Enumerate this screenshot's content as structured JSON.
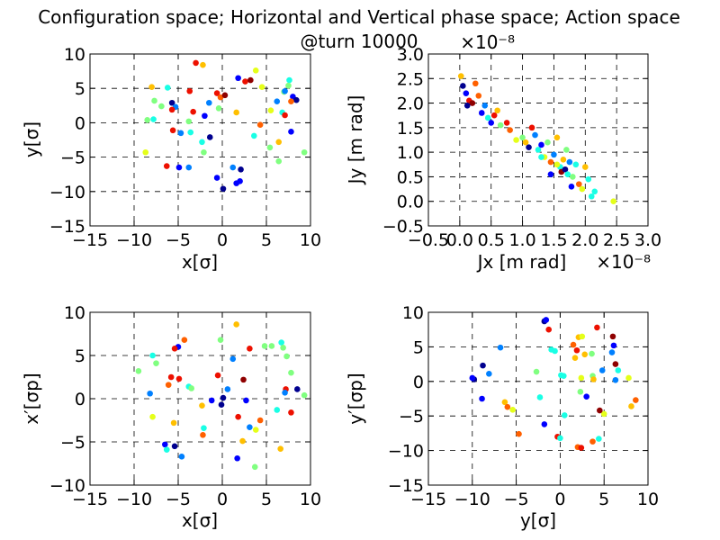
{
  "figure": {
    "title_line1": "Configuration space; Horizontal and Vertical phase space; Action space",
    "title_line2": "@turn 10000"
  },
  "colors": [
    "#00008f",
    "#0000ff",
    "#0080ff",
    "#19ffe5",
    "#80ff80",
    "#e5ff19",
    "#ffbf00",
    "#ff6000",
    "#ed1000",
    "#8f0000"
  ],
  "chart_data": [
    {
      "id": "config",
      "type": "scatter",
      "xlabel": "x[σ]",
      "ylabel": "y[σ]",
      "xlim": [
        -15,
        10
      ],
      "ylim": [
        -15,
        10
      ],
      "xticks": [
        "−15",
        "−10",
        "−5",
        "0",
        "5",
        "10"
      ],
      "yticks": [
        "−15",
        "−10",
        "−5",
        "0",
        "5",
        "10"
      ],
      "points": [
        [
          -3,
          8.7,
          8
        ],
        [
          -2.2,
          8.4,
          6
        ],
        [
          3.8,
          7.6,
          5
        ],
        [
          1.8,
          6.5,
          1
        ],
        [
          2.6,
          6,
          8
        ],
        [
          3.2,
          6.2,
          9
        ],
        [
          7.6,
          6.2,
          3
        ],
        [
          7.5,
          5.4,
          4
        ],
        [
          -8,
          5.2,
          6
        ],
        [
          -6.2,
          5.1,
          3
        ],
        [
          4.5,
          5.2,
          5
        ],
        [
          7,
          4.5,
          4
        ],
        [
          -3.7,
          4.6,
          8
        ],
        [
          -0.6,
          4.3,
          8
        ],
        [
          -0.2,
          3.7,
          7
        ],
        [
          0.3,
          4,
          9
        ],
        [
          7.1,
          4.6,
          2
        ],
        [
          8,
          3.8,
          1
        ],
        [
          8.4,
          3.3,
          0
        ],
        [
          7.8,
          3.1,
          7
        ],
        [
          -5.7,
          2.9,
          0
        ],
        [
          6.2,
          3.1,
          2
        ],
        [
          -5.3,
          2.3,
          2
        ],
        [
          -6.9,
          2.4,
          4
        ],
        [
          -5.7,
          1.9,
          8
        ],
        [
          -3.3,
          1.6,
          8
        ],
        [
          -0.4,
          2.1,
          4
        ],
        [
          5.5,
          1.8,
          5
        ],
        [
          6.8,
          1.5,
          3
        ],
        [
          7.1,
          1.1,
          8
        ],
        [
          1.6,
          1.5,
          6
        ],
        [
          -2,
          1,
          1
        ],
        [
          -7.8,
          0.5,
          3
        ],
        [
          -8.5,
          0.4,
          4
        ],
        [
          -3.8,
          0.2,
          4
        ],
        [
          4.3,
          -0.3,
          7
        ],
        [
          -5.6,
          -1.1,
          8
        ],
        [
          -4.7,
          -1.5,
          2
        ],
        [
          -3.6,
          -1.4,
          3
        ],
        [
          7.8,
          -1.3,
          1
        ],
        [
          3.6,
          -1.9,
          3
        ],
        [
          -1.4,
          -2.1,
          0
        ],
        [
          -2.3,
          -2.8,
          3
        ],
        [
          6.4,
          -2.8,
          6
        ],
        [
          5.4,
          -3.6,
          4
        ],
        [
          -2.1,
          -4.3,
          4
        ],
        [
          -8.7,
          -4.3,
          5
        ],
        [
          9.3,
          -4.3,
          4
        ],
        [
          -6.3,
          -6.3,
          8
        ],
        [
          -4.9,
          -6.5,
          1
        ],
        [
          -3.8,
          -6.5,
          2
        ],
        [
          1.2,
          -6.5,
          2
        ],
        [
          6.4,
          -5.6,
          4
        ],
        [
          2.1,
          -6.8,
          0
        ],
        [
          -0.6,
          -8,
          1
        ],
        [
          2,
          -8.5,
          1
        ],
        [
          1.6,
          -8.8,
          1
        ],
        [
          0.1,
          -9.6,
          0
        ],
        [
          -7.7,
          3.2,
          4
        ],
        [
          -1.5,
          2.9,
          2
        ]
      ]
    },
    {
      "id": "action",
      "type": "scatter",
      "xlabel": "Jx [m rad]",
      "ylabel": "Jy [m rad]",
      "multiplier": "×10⁻⁸",
      "xlim": [
        -0.5,
        3
      ],
      "ylim": [
        -0.5,
        3
      ],
      "xticks": [
        "−0.5",
        "0.0",
        "0.5",
        "1.0",
        "1.5",
        "2.0",
        "2.5",
        "3.0"
      ],
      "yticks": [
        "−0.5",
        "0.0",
        "0.5",
        "1.0",
        "1.5",
        "2.0",
        "2.5",
        "3.0"
      ],
      "points": [
        [
          0.02,
          2.55,
          6
        ],
        [
          0.05,
          2.35,
          0
        ],
        [
          0.1,
          2.2,
          1
        ],
        [
          0.15,
          2.05,
          8
        ],
        [
          0.2,
          2.0,
          9
        ],
        [
          0.25,
          2.4,
          7
        ],
        [
          0.12,
          1.95,
          0
        ],
        [
          0.3,
          2.15,
          7
        ],
        [
          0.35,
          1.8,
          1
        ],
        [
          0.4,
          1.95,
          2
        ],
        [
          0.45,
          1.7,
          3
        ],
        [
          0.5,
          1.6,
          1
        ],
        [
          0.55,
          1.75,
          8
        ],
        [
          0.6,
          1.85,
          6
        ],
        [
          0.65,
          1.55,
          4
        ],
        [
          0.75,
          1.6,
          8
        ],
        [
          0.8,
          1.45,
          7
        ],
        [
          0.9,
          1.25,
          5
        ],
        [
          1.0,
          1.3,
          4
        ],
        [
          1.05,
          1.2,
          6
        ],
        [
          1.1,
          1.1,
          0
        ],
        [
          1.15,
          1.5,
          8
        ],
        [
          1.2,
          1.35,
          2
        ],
        [
          1.25,
          1.05,
          3
        ],
        [
          1.3,
          1.15,
          1
        ],
        [
          1.35,
          0.9,
          5
        ],
        [
          1.4,
          1.2,
          4
        ],
        [
          1.45,
          0.8,
          7
        ],
        [
          1.5,
          0.95,
          2
        ],
        [
          1.55,
          1.3,
          6
        ],
        [
          1.6,
          0.7,
          3
        ],
        [
          1.62,
          0.6,
          9
        ],
        [
          1.65,
          0.85,
          6
        ],
        [
          1.68,
          0.65,
          0
        ],
        [
          1.7,
          1.05,
          4
        ],
        [
          1.72,
          0.55,
          3
        ],
        [
          1.75,
          0.8,
          2
        ],
        [
          1.78,
          0.3,
          1
        ],
        [
          1.8,
          0.5,
          4
        ],
        [
          1.85,
          0.75,
          3
        ],
        [
          1.9,
          0.35,
          7
        ],
        [
          1.95,
          0.25,
          5
        ],
        [
          2.0,
          0.7,
          6
        ],
        [
          2.05,
          0.45,
          3
        ],
        [
          2.1,
          0.1,
          3
        ],
        [
          2.15,
          0.2,
          3
        ],
        [
          2.45,
          0.0,
          5
        ],
        [
          1.45,
          0.55,
          1
        ],
        [
          1.55,
          0.75,
          5
        ],
        [
          1.3,
          0.9,
          3
        ]
      ]
    },
    {
      "id": "hphase",
      "type": "scatter",
      "xlabel": "x[σ]",
      "ylabel": "x′[σp]",
      "xlim": [
        -15,
        10
      ],
      "ylim": [
        -10,
        10
      ],
      "xticks": [
        "−15",
        "−10",
        "−5",
        "0",
        "5",
        "10"
      ],
      "yticks": [
        "−10",
        "−5",
        "0",
        "5",
        "10"
      ],
      "points": [
        [
          1.6,
          8.6,
          6
        ],
        [
          -4.3,
          6.8,
          7
        ],
        [
          -0.2,
          6.8,
          4
        ],
        [
          6.7,
          6.5,
          3
        ],
        [
          4.8,
          6.1,
          4
        ],
        [
          5.6,
          6.1,
          4
        ],
        [
          -5.0,
          6.0,
          1
        ],
        [
          -5.4,
          5.8,
          8
        ],
        [
          6.9,
          5.9,
          4
        ],
        [
          3.1,
          5.8,
          8
        ],
        [
          -7.9,
          5.0,
          3
        ],
        [
          -7.5,
          4.1,
          4
        ],
        [
          7.3,
          4.9,
          4
        ],
        [
          1.2,
          4.6,
          2
        ],
        [
          -9.5,
          3.2,
          4
        ],
        [
          7.8,
          3.0,
          4
        ],
        [
          -4.9,
          2.3,
          8
        ],
        [
          -5.8,
          2.5,
          8
        ],
        [
          -0.5,
          2.7,
          8
        ],
        [
          2.4,
          2.2,
          9
        ],
        [
          -6.1,
          1.6,
          7
        ],
        [
          -3.8,
          1.4,
          3
        ],
        [
          -3.5,
          1.2,
          4
        ],
        [
          0.6,
          1.1,
          2
        ],
        [
          7.2,
          1.1,
          8
        ],
        [
          8.5,
          1.1,
          0
        ],
        [
          9.3,
          0.4,
          4
        ],
        [
          -8.2,
          0.6,
          2
        ],
        [
          7.1,
          0.7,
          2
        ],
        [
          -1.2,
          -0.2,
          1
        ],
        [
          0.1,
          0.1,
          0
        ],
        [
          -0.1,
          -0.7,
          0
        ],
        [
          2.7,
          -0.2,
          1
        ],
        [
          -2.3,
          -0.8,
          6
        ],
        [
          6.2,
          -1.3,
          3
        ],
        [
          7.8,
          -1.6,
          8
        ],
        [
          -7.9,
          -2.1,
          5
        ],
        [
          1.8,
          -2.1,
          8
        ],
        [
          4.3,
          -2.5,
          7
        ],
        [
          3.1,
          -3.3,
          2
        ],
        [
          3.8,
          -3.6,
          5
        ],
        [
          -2.1,
          -3.4,
          3
        ],
        [
          -2.2,
          -4.2,
          7
        ],
        [
          -6.5,
          -5.3,
          1
        ],
        [
          -5.4,
          -5.5,
          0
        ],
        [
          -4.6,
          -6.7,
          2
        ],
        [
          -6.3,
          -5.9,
          3
        ],
        [
          6.6,
          -5.8,
          6
        ],
        [
          1.7,
          -6.9,
          1
        ],
        [
          3.7,
          -7.9,
          4
        ],
        [
          -5.5,
          -2.8,
          6
        ],
        [
          2.3,
          -4.9,
          6
        ]
      ]
    },
    {
      "id": "vphase",
      "type": "scatter",
      "xlabel": "y[σ]",
      "ylabel": "y′[σp]",
      "xlim": [
        -15,
        10
      ],
      "ylim": [
        -15,
        10
      ],
      "xticks": [
        "−15",
        "−10",
        "−5",
        "0",
        "5",
        "10"
      ],
      "yticks": [
        "−15",
        "−10",
        "−5",
        "0",
        "5",
        "10"
      ],
      "points": [
        [
          -1.8,
          8.7,
          0
        ],
        [
          -1.6,
          8.9,
          1
        ],
        [
          4.2,
          7.8,
          8
        ],
        [
          6.0,
          6.5,
          9
        ],
        [
          -1.3,
          7.5,
          8
        ],
        [
          2.1,
          6.4,
          6
        ],
        [
          2.5,
          6.5,
          5
        ],
        [
          1.5,
          5.3,
          7
        ],
        [
          1.9,
          4.5,
          8
        ],
        [
          6.1,
          5.2,
          1
        ],
        [
          -6.8,
          4.9,
          2
        ],
        [
          2.8,
          3.9,
          6
        ],
        [
          5.9,
          4.2,
          2
        ],
        [
          -1.0,
          4.6,
          3
        ],
        [
          -0.6,
          4.4,
          3
        ],
        [
          3.6,
          4.0,
          4
        ],
        [
          1.7,
          3.4,
          6
        ],
        [
          6.3,
          2.5,
          9
        ],
        [
          6.6,
          1.6,
          3
        ],
        [
          -8.8,
          2.3,
          0
        ],
        [
          -2.7,
          1.4,
          4
        ],
        [
          -8.1,
          1.1,
          2
        ],
        [
          4.8,
          1.6,
          2
        ],
        [
          3.7,
          0.8,
          4
        ],
        [
          7.8,
          0.5,
          5
        ],
        [
          -9.8,
          0.3,
          0
        ],
        [
          -10.0,
          0.5,
          1
        ],
        [
          0.1,
          0.9,
          3
        ],
        [
          0.4,
          0.8,
          3
        ],
        [
          2.4,
          0.5,
          5
        ],
        [
          3.8,
          0.3,
          6
        ],
        [
          6.3,
          0.2,
          2
        ],
        [
          -6.3,
          -3.0,
          6
        ],
        [
          -6.0,
          -3.7,
          7
        ],
        [
          -5.4,
          -4.1,
          5
        ],
        [
          -2.3,
          -2.3,
          3
        ],
        [
          0.5,
          -4.9,
          3
        ],
        [
          -1.8,
          -6.2,
          1
        ],
        [
          -4.7,
          -7.6,
          7
        ],
        [
          -0.3,
          -8.0,
          8
        ],
        [
          0.0,
          -8.2,
          3
        ],
        [
          4.4,
          -8.3,
          3
        ],
        [
          3.7,
          -8.7,
          7
        ],
        [
          2.0,
          -9.5,
          7
        ],
        [
          2.4,
          -9.6,
          8
        ],
        [
          8.6,
          -2.7,
          7
        ],
        [
          8.1,
          -3.6,
          6
        ],
        [
          5.0,
          -4.7,
          5
        ],
        [
          4.5,
          -4.2,
          9
        ],
        [
          -8.9,
          -2.5,
          1
        ],
        [
          2.3,
          -1.5,
          4
        ],
        [
          3.0,
          -2.2,
          1
        ]
      ]
    }
  ]
}
